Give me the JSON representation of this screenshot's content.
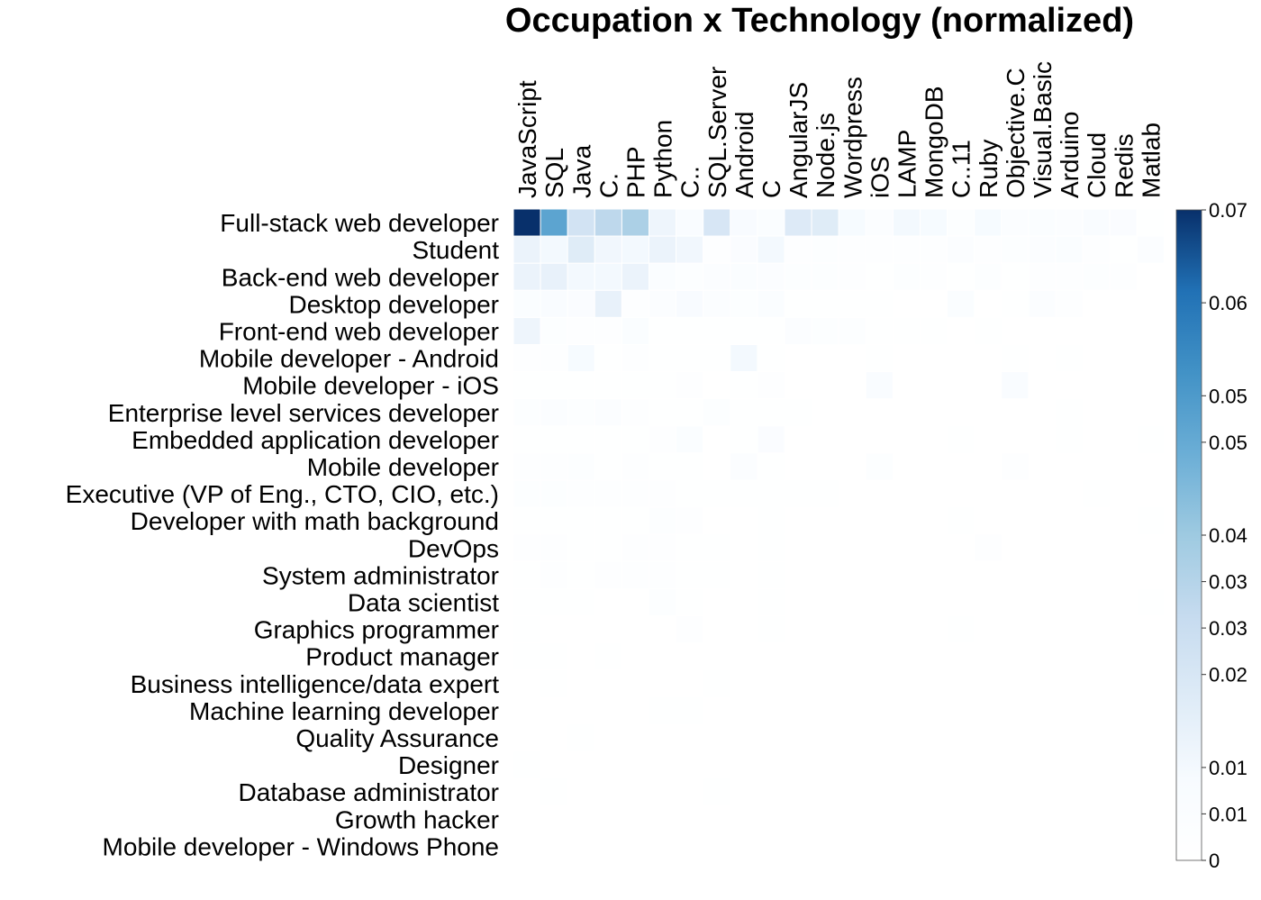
{
  "chart_data": {
    "type": "heatmap",
    "title": "Occupation x Technology (normalized)",
    "rows": [
      "Full-stack web developer",
      "Student",
      "Back-end web developer",
      "Desktop developer",
      "Front-end web developer",
      "Mobile developer - Android",
      "Mobile developer - iOS",
      "Enterprise level services developer",
      "Embedded application developer",
      "Mobile developer",
      "Executive (VP of Eng., CTO, CIO, etc.)",
      "Developer with math background",
      "DevOps",
      "System administrator",
      "Data scientist",
      "Graphics programmer",
      "Product manager",
      "Business intelligence/data expert",
      "Machine learning developer",
      "Quality Assurance",
      "Designer",
      "Database administrator",
      "Growth hacker",
      "Mobile developer - Windows Phone"
    ],
    "columns": [
      "JavaScript",
      "SQL",
      "Java",
      "C.",
      "PHP",
      "Python",
      "C..",
      "SQL.Server",
      "Android",
      "C",
      "AngularJS",
      "Node.js",
      "Wordpress",
      "iOS",
      "LAMP",
      "MongoDB",
      "C..11",
      "Ruby",
      "Objective.C",
      "Visual.Basic",
      "Arduino",
      "Cloud",
      "Redis",
      "Matlab"
    ],
    "values": [
      [
        0.07,
        0.047,
        0.022,
        0.028,
        0.032,
        0.012,
        0.007,
        0.02,
        0.008,
        0.005,
        0.018,
        0.017,
        0.009,
        0.004,
        0.01,
        0.009,
        0.003,
        0.009,
        0.004,
        0.005,
        0.004,
        0.007,
        0.006,
        0.001
      ],
      [
        0.013,
        0.01,
        0.017,
        0.011,
        0.01,
        0.013,
        0.011,
        0.002,
        0.006,
        0.01,
        0.002,
        0.003,
        0.002,
        0.002,
        0.002,
        0.002,
        0.004,
        0.002,
        0.003,
        0.004,
        0.005,
        0.002,
        0.001,
        0.004
      ],
      [
        0.013,
        0.014,
        0.01,
        0.01,
        0.013,
        0.005,
        0.003,
        0.004,
        0.005,
        0.004,
        0.003,
        0.003,
        0.002,
        0.001,
        0.003,
        0.002,
        0.001,
        0.003,
        0.001,
        0.002,
        0.002,
        0.003,
        0.002,
        0.0
      ],
      [
        0.005,
        0.007,
        0.006,
        0.014,
        0.002,
        0.004,
        0.008,
        0.004,
        0.003,
        0.005,
        0.001,
        0.001,
        0.001,
        0.001,
        0.0,
        0.0,
        0.005,
        0.0,
        0.001,
        0.004,
        0.002,
        0.0,
        0.0,
        0.0
      ],
      [
        0.012,
        0.003,
        0.002,
        0.002,
        0.005,
        0.001,
        0.001,
        0.001,
        0.001,
        0.001,
        0.004,
        0.003,
        0.003,
        0.001,
        0.001,
        0.001,
        0.0,
        0.001,
        0.0,
        0.0,
        0.0,
        0.0,
        0.0,
        0.0
      ],
      [
        0.002,
        0.002,
        0.009,
        0.001,
        0.002,
        0.001,
        0.001,
        0.001,
        0.01,
        0.001,
        0.0,
        0.0,
        0.0,
        0.001,
        0.0,
        0.0,
        0.0,
        0.0,
        0.001,
        0.0,
        0.001,
        0.0,
        0.0,
        0.0
      ],
      [
        0.001,
        0.001,
        0.001,
        0.001,
        0.001,
        0.001,
        0.002,
        0.0,
        0.001,
        0.002,
        0.0,
        0.0,
        0.0,
        0.007,
        0.0,
        0.0,
        0.0,
        0.0,
        0.007,
        0.0,
        0.0,
        0.0,
        0.0,
        0.0
      ],
      [
        0.003,
        0.004,
        0.003,
        0.004,
        0.002,
        0.001,
        0.001,
        0.003,
        0.001,
        0.001,
        0.001,
        0.0,
        0.0,
        0.0,
        0.0,
        0.0,
        0.0,
        0.0,
        0.0,
        0.0,
        0.001,
        0.0,
        0.0,
        0.0
      ],
      [
        0.001,
        0.001,
        0.001,
        0.001,
        0.001,
        0.002,
        0.005,
        0.0,
        0.001,
        0.006,
        0.0,
        0.0,
        0.0,
        0.0,
        0.0,
        0.0,
        0.001,
        0.0,
        0.0,
        0.0,
        0.001,
        0.0,
        0.0,
        0.001
      ],
      [
        0.002,
        0.002,
        0.003,
        0.001,
        0.002,
        0.001,
        0.001,
        0.0,
        0.004,
        0.001,
        0.0,
        0.0,
        0.0,
        0.003,
        0.0,
        0.0,
        0.0,
        0.0,
        0.002,
        0.0,
        0.0,
        0.0,
        0.0,
        0.0
      ],
      [
        0.003,
        0.003,
        0.002,
        0.002,
        0.002,
        0.002,
        0.001,
        0.001,
        0.001,
        0.001,
        0.001,
        0.001,
        0.0,
        0.0,
        0.0,
        0.0,
        0.0,
        0.0,
        0.0,
        0.0,
        0.0,
        0.001,
        0.0,
        0.0
      ],
      [
        0.001,
        0.001,
        0.001,
        0.001,
        0.001,
        0.003,
        0.002,
        0.0,
        0.0,
        0.001,
        0.0,
        0.0,
        0.0,
        0.0,
        0.0,
        0.0,
        0.001,
        0.0,
        0.0,
        0.0,
        0.0,
        0.0,
        0.0,
        0.001
      ],
      [
        0.002,
        0.002,
        0.001,
        0.001,
        0.002,
        0.002,
        0.001,
        0.001,
        0.0,
        0.001,
        0.0,
        0.0,
        0.0,
        0.0,
        0.0,
        0.0,
        0.0,
        0.002,
        0.0,
        0.0,
        0.0,
        0.0,
        0.0,
        0.0
      ],
      [
        0.001,
        0.002,
        0.001,
        0.002,
        0.002,
        0.002,
        0.001,
        0.001,
        0.0,
        0.001,
        0.0,
        0.0,
        0.0,
        0.0,
        0.0,
        0.0,
        0.0,
        0.0,
        0.0,
        0.0,
        0.0,
        0.0,
        0.0,
        0.0
      ],
      [
        0.001,
        0.001,
        0.001,
        0.0,
        0.0,
        0.003,
        0.001,
        0.0,
        0.0,
        0.001,
        0.0,
        0.0,
        0.0,
        0.0,
        0.0,
        0.0,
        0.0,
        0.0,
        0.0,
        0.0,
        0.0,
        0.0,
        0.0,
        0.001
      ],
      [
        0.001,
        0.0,
        0.0,
        0.0,
        0.0,
        0.0,
        0.002,
        0.0,
        0.0,
        0.001,
        0.0,
        0.0,
        0.0,
        0.0,
        0.0,
        0.0,
        0.001,
        0.0,
        0.0,
        0.0,
        0.0,
        0.0,
        0.0,
        0.0
      ],
      [
        0.001,
        0.001,
        0.0,
        0.001,
        0.0,
        0.0,
        0.0,
        0.0,
        0.0,
        0.0,
        0.0,
        0.0,
        0.0,
        0.0,
        0.0,
        0.0,
        0.0,
        0.0,
        0.0,
        0.0,
        0.0,
        0.0,
        0.0,
        0.0
      ],
      [
        0.0,
        0.001,
        0.0,
        0.0,
        0.0,
        0.0,
        0.0,
        0.001,
        0.0,
        0.0,
        0.0,
        0.0,
        0.0,
        0.0,
        0.0,
        0.0,
        0.0,
        0.0,
        0.0,
        0.0,
        0.0,
        0.0,
        0.0,
        0.0
      ],
      [
        0.0,
        0.0,
        0.0,
        0.0,
        0.0,
        0.001,
        0.001,
        0.0,
        0.0,
        0.0,
        0.0,
        0.0,
        0.0,
        0.0,
        0.0,
        0.0,
        0.0,
        0.0,
        0.0,
        0.0,
        0.0,
        0.0,
        0.0,
        0.0
      ],
      [
        0.0,
        0.0,
        0.001,
        0.0,
        0.0,
        0.0,
        0.0,
        0.0,
        0.0,
        0.0,
        0.0,
        0.0,
        0.0,
        0.0,
        0.0,
        0.0,
        0.0,
        0.0,
        0.0,
        0.0,
        0.0,
        0.0,
        0.0,
        0.0
      ],
      [
        0.001,
        0.0,
        0.0,
        0.0,
        0.0,
        0.0,
        0.0,
        0.0,
        0.0,
        0.0,
        0.0,
        0.0,
        0.0,
        0.0,
        0.0,
        0.0,
        0.0,
        0.0,
        0.0,
        0.0,
        0.0,
        0.0,
        0.0,
        0.0
      ],
      [
        0.0,
        0.001,
        0.0,
        0.0,
        0.0,
        0.0,
        0.0,
        0.001,
        0.0,
        0.0,
        0.0,
        0.0,
        0.0,
        0.0,
        0.0,
        0.0,
        0.0,
        0.0,
        0.0,
        0.0,
        0.0,
        0.0,
        0.0,
        0.0
      ],
      [
        0.0,
        0.0,
        0.0,
        0.0,
        0.0,
        0.0,
        0.0,
        0.0,
        0.0,
        0.0,
        0.0,
        0.0,
        0.0,
        0.0,
        0.0,
        0.0,
        0.0,
        0.0,
        0.0,
        0.0,
        0.0,
        0.0,
        0.0,
        0.0
      ],
      [
        0.0,
        0.0,
        0.0,
        0.0,
        0.0,
        0.0,
        0.0,
        0.0,
        0.0,
        0.0,
        0.0,
        0.0,
        0.0,
        0.0,
        0.0,
        0.0,
        0.0,
        0.0,
        0.0,
        0.0,
        0.0,
        0.0,
        0.0,
        0.0
      ]
    ],
    "color_scale": {
      "min": 0,
      "max": 0.07,
      "low_color": "#ffffff",
      "high_color": "#08306b",
      "palette": "Blues"
    },
    "colorbar_ticks": [
      {
        "value": 0.07,
        "label": "0.07"
      },
      {
        "value": 0.06,
        "label": "0.06"
      },
      {
        "value": 0.05,
        "label": "0.05"
      },
      {
        "value": 0.045,
        "label": "0.05"
      },
      {
        "value": 0.035,
        "label": "0.04"
      },
      {
        "value": 0.03,
        "label": "0.03"
      },
      {
        "value": 0.025,
        "label": "0.03"
      },
      {
        "value": 0.02,
        "label": "0.02"
      },
      {
        "value": 0.01,
        "label": "0.01"
      },
      {
        "value": 0.005,
        "label": "0.01"
      },
      {
        "value": 0.0,
        "label": "0"
      }
    ]
  }
}
